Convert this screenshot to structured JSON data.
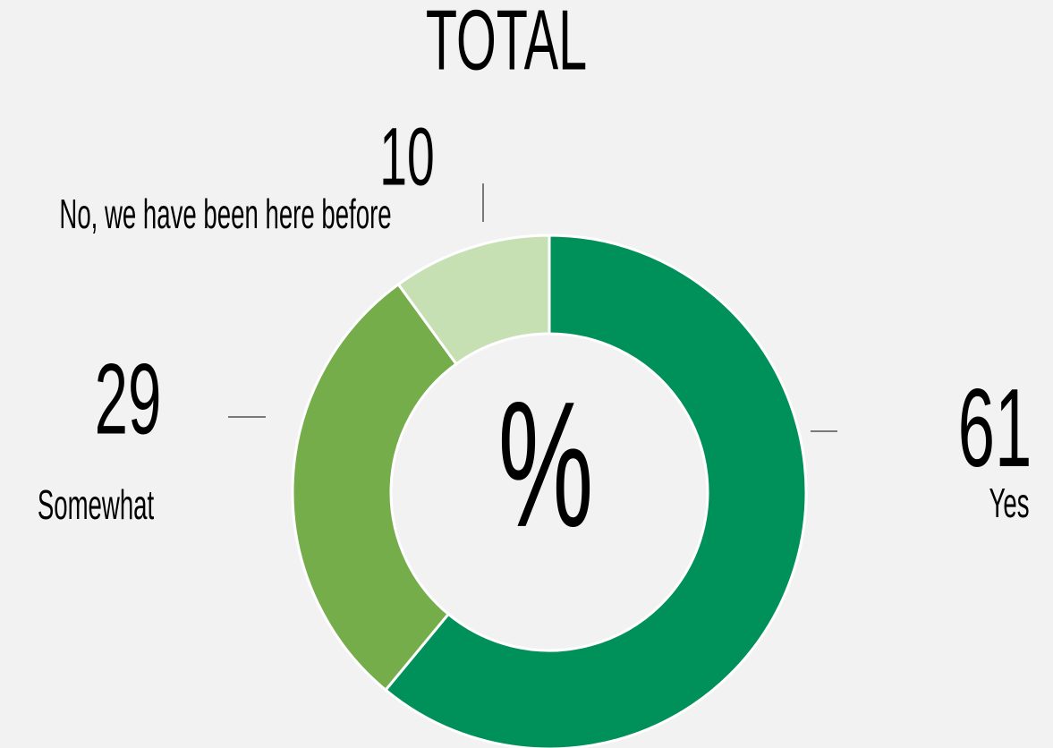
{
  "chart_data": {
    "type": "pie",
    "title": "TOTAL",
    "center_label": "%",
    "categories": [
      "Yes",
      "Somewhat",
      "No, we have been here before"
    ],
    "values": [
      61,
      29,
      10
    ],
    "colors": [
      "#00905a",
      "#74ad4a",
      "#c6e0b4"
    ]
  }
}
